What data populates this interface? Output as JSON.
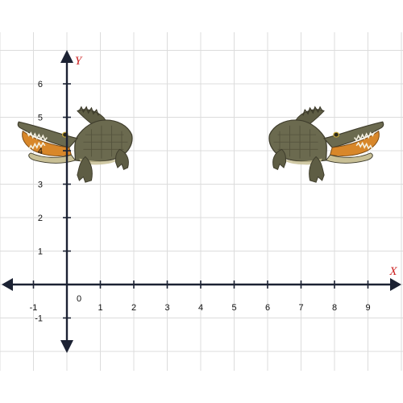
{
  "figure": {
    "axes": {
      "x_label": "X",
      "y_label": "Y",
      "x_ticks": [
        "-1",
        "0",
        "1",
        "2",
        "3",
        "4",
        "5",
        "6",
        "7",
        "8",
        "9"
      ],
      "y_ticks": [
        "-1",
        "1",
        "2",
        "3",
        "4",
        "5",
        "6"
      ],
      "origin_label": "0",
      "x_range": [
        -2,
        10
      ],
      "y_range": [
        -2,
        7
      ],
      "grid": true,
      "axis_color": "#1c2233",
      "label_color": "#cc1f1f",
      "grid_color": "#dcdcdc"
    },
    "images": [
      {
        "name": "crocodile",
        "facing": "left",
        "x": [
          -1.5,
          2.0
        ],
        "y": [
          3.0,
          5.3
        ]
      },
      {
        "name": "crocodile",
        "facing": "right",
        "x": [
          6.0,
          9.5
        ],
        "y": [
          3.0,
          5.3
        ]
      }
    ],
    "colors": {
      "croc_body": "#6b6a4f",
      "croc_dark": "#3f3d2c",
      "croc_belly": "#c8bf95",
      "croc_mouth": "#d8872a",
      "croc_teeth": "#f4f0e0"
    }
  }
}
